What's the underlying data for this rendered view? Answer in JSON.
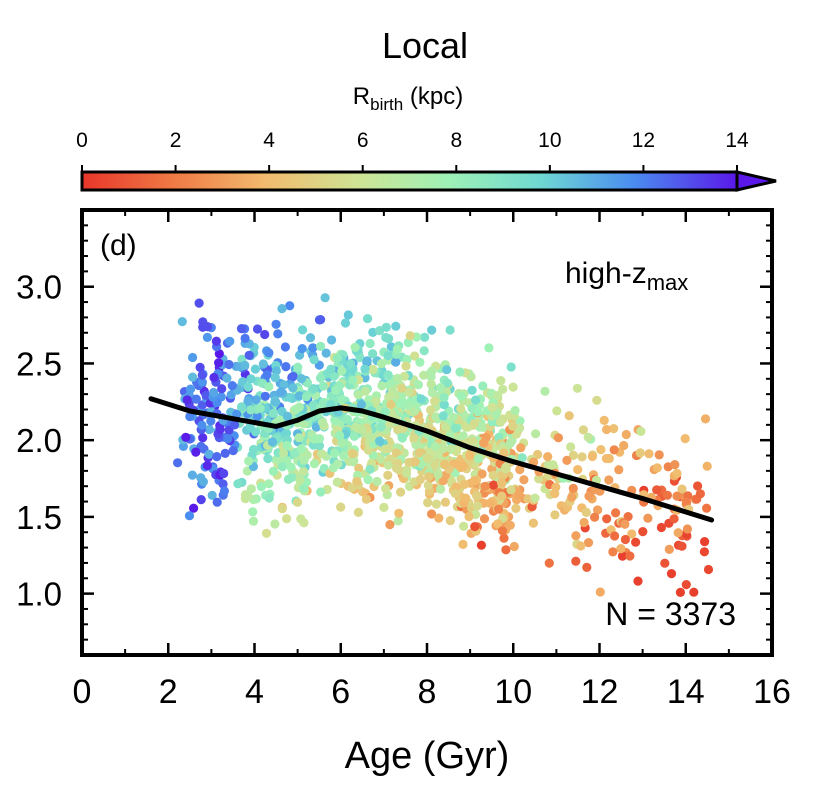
{
  "chart_data": {
    "type": "scatter",
    "title": "Local",
    "panel_label": "(d)",
    "annotation": "high-z",
    "annotation_sub": "max",
    "count_label": "N = 3373",
    "xlabel": "Age (Gyr)",
    "ylabel": "",
    "xlim": [
      0,
      16
    ],
    "ylim": [
      0.6,
      3.5
    ],
    "x_ticks": [
      0,
      2,
      4,
      6,
      8,
      10,
      12,
      14,
      16
    ],
    "y_ticks": [
      1.0,
      1.5,
      2.0,
      2.5,
      3.0
    ],
    "x_tick_labels": [
      "0",
      "2",
      "4",
      "6",
      "8",
      "10",
      "12",
      "14",
      "16"
    ],
    "y_tick_labels": [
      "1.0",
      "1.5",
      "2.0",
      "2.5",
      "3.0"
    ],
    "colorbar": {
      "label": "R",
      "label_sub": "birth",
      "label_unit": " (kpc)",
      "range": [
        0,
        14
      ],
      "ticks": [
        0,
        2,
        4,
        6,
        8,
        10,
        12,
        14
      ],
      "tick_labels": [
        "0",
        "2",
        "4",
        "6",
        "8",
        "10",
        "12",
        "14"
      ],
      "colormap": "rainbow",
      "extend": "max"
    },
    "trend_line": {
      "color": "#000000",
      "x": [
        1.6,
        2.5,
        3.5,
        4.5,
        5.0,
        5.5,
        6.0,
        6.5,
        7.0,
        8.0,
        9.0,
        10.0,
        11.0,
        12.0,
        13.0,
        14.6
      ],
      "y": [
        2.27,
        2.19,
        2.14,
        2.09,
        2.13,
        2.19,
        2.21,
        2.19,
        2.15,
        2.06,
        1.95,
        1.86,
        1.78,
        1.7,
        1.62,
        1.48
      ]
    },
    "scatter_stats": {
      "n": 3373,
      "age_range": [
        1.6,
        14.6
      ],
      "y_range": [
        0.8,
        3.1
      ]
    },
    "grid": false,
    "legend": "none"
  }
}
